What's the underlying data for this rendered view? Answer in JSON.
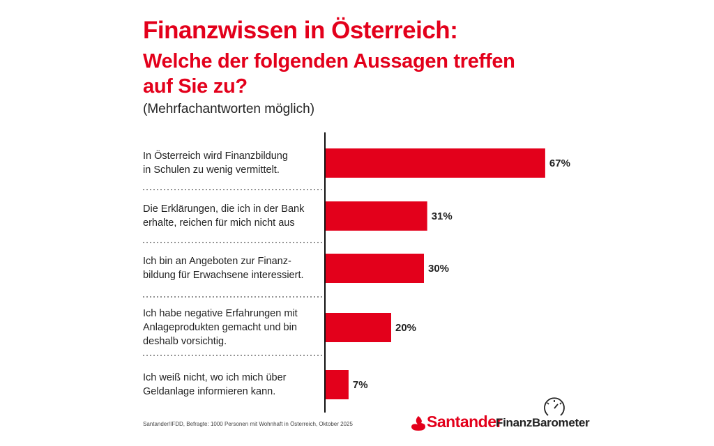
{
  "chart_data": {
    "type": "bar",
    "orientation": "horizontal",
    "title": "Finanzwissen in Österreich:",
    "subtitle": "Welche der folgenden Aussagen treffen\nauf Sie zu?",
    "note": "(Mehrfachantworten möglich)",
    "categories": [
      "In Österreich wird Finanzbildung\nin Schulen zu wenig vermittelt.",
      "Die Erklärungen, die ich in der Bank\nerhalte, reichen für mich nicht aus",
      "Ich bin an Angeboten zur Finanz-\nbildung für Erwachsene interessiert.",
      "Ich habe negative Erfahrungen mit\nAnlageprodukten gemacht und bin\ndeshalb vorsichtig.",
      "Ich weiß nicht, wo ich mich über\nGeldanlage informieren kann."
    ],
    "values": [
      67,
      31,
      30,
      20,
      7
    ],
    "value_labels": [
      "67%",
      "31%",
      "30%",
      "20%",
      "7%"
    ],
    "color": "#e3001b",
    "source": "Santander/IFDD, Befragte: 1000 Personen mit Wohnhaft in Österreich, Oktober 2025",
    "brand": "Santander",
    "brand_product": "FinanzBarometer"
  }
}
